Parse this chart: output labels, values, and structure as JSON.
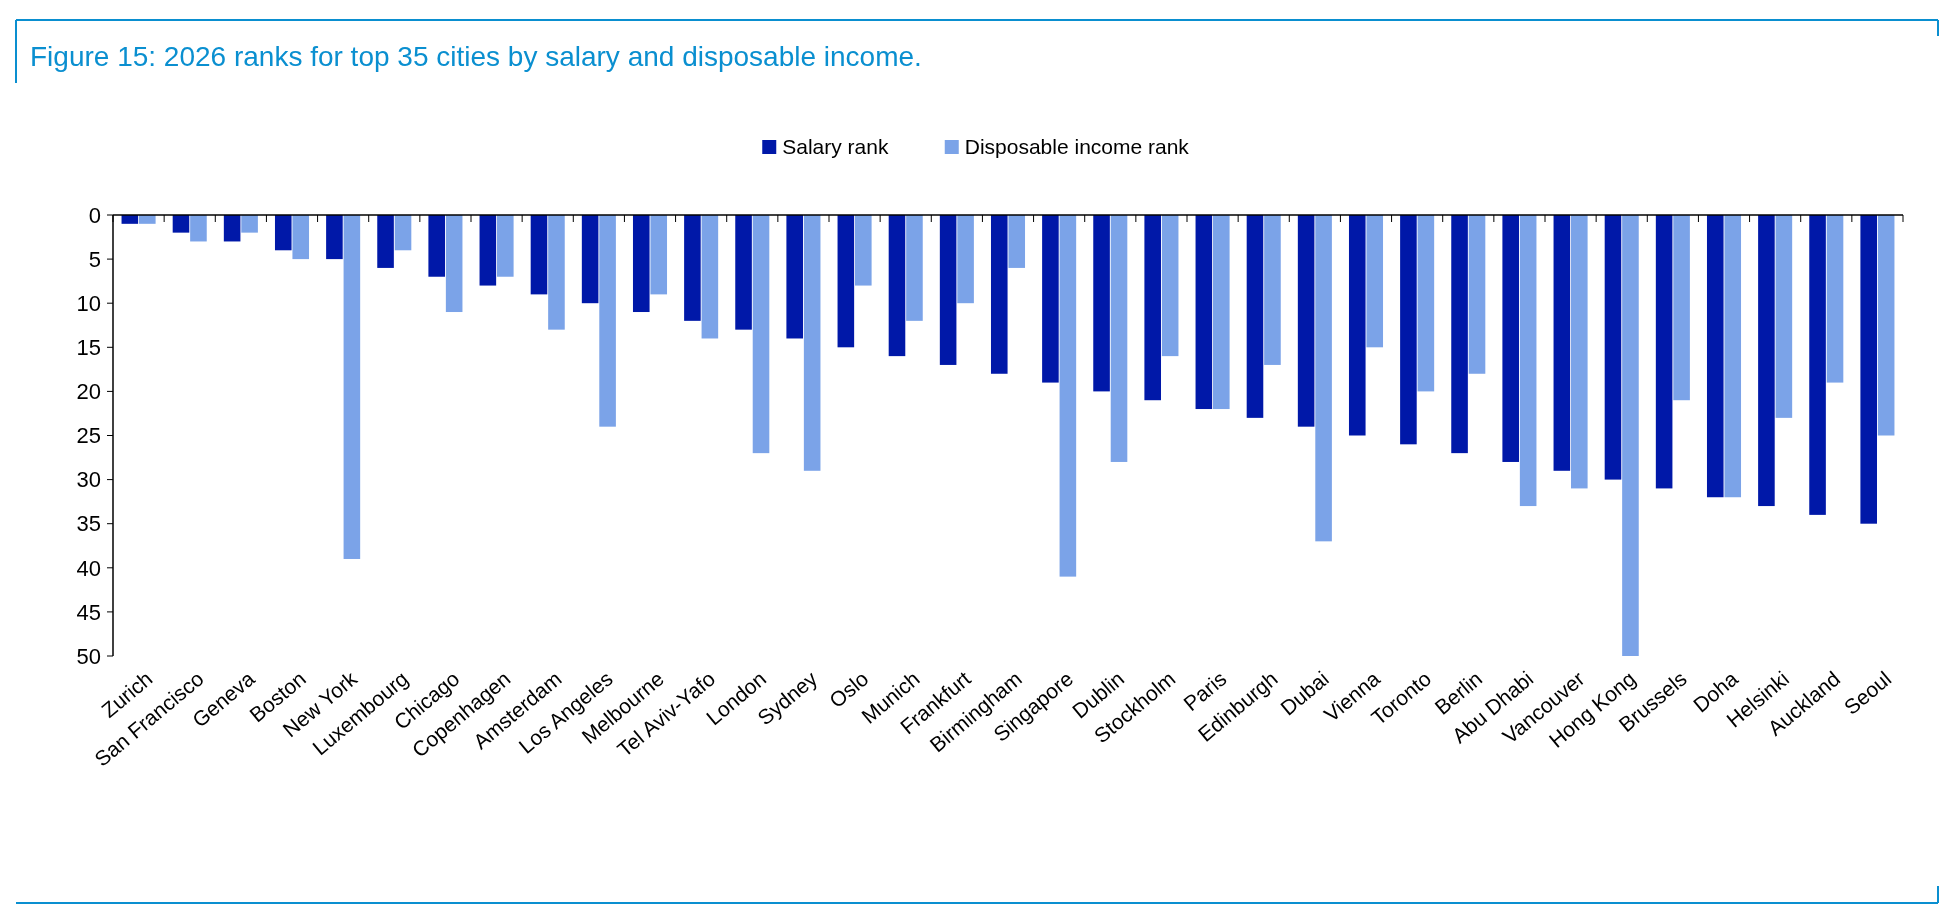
{
  "chart_data": {
    "type": "bar",
    "title": "Figure 15: 2026 ranks for top 35 cities by salary and disposable income.",
    "categories": [
      "Zurich",
      "San Francisco",
      "Geneva",
      "Boston",
      "New York",
      "Luxembourg",
      "Chicago",
      "Copenhagen",
      "Amsterdam",
      "Los Angeles",
      "Melbourne",
      "Tel Aviv-Yafo",
      "London",
      "Sydney",
      "Oslo",
      "Munich",
      "Frankfurt",
      "Birmingham",
      "Singapore",
      "Dublin",
      "Stockholm",
      "Paris",
      "Edinburgh",
      "Dubai",
      "Vienna",
      "Toronto",
      "Berlin",
      "Abu Dhabi",
      "Vancouver",
      "Hong Kong",
      "Brussels",
      "Doha",
      "Helsinki",
      "Auckland",
      "Seoul"
    ],
    "series": [
      {
        "name": "Salary rank",
        "color": "#0018a8",
        "values": [
          1,
          2,
          3,
          4,
          5,
          6,
          7,
          8,
          9,
          10,
          11,
          12,
          13,
          14,
          15,
          16,
          17,
          18,
          19,
          20,
          21,
          22,
          23,
          24,
          25,
          26,
          27,
          28,
          29,
          30,
          31,
          32,
          33,
          34,
          35
        ]
      },
      {
        "name": "Disposable income rank",
        "color": "#7ba3e8",
        "values": [
          1,
          3,
          2,
          5,
          39,
          4,
          11,
          7,
          13,
          24,
          9,
          14,
          27,
          29,
          8,
          12,
          10,
          6,
          41,
          28,
          16,
          22,
          17,
          37,
          15,
          20,
          18,
          33,
          31,
          50,
          21,
          32,
          23,
          19,
          25
        ]
      }
    ],
    "ylim": [
      50,
      0
    ],
    "yticks": [
      0,
      5,
      10,
      15,
      20,
      25,
      30,
      35,
      40,
      45,
      50
    ],
    "grid": false,
    "legend": "top"
  }
}
